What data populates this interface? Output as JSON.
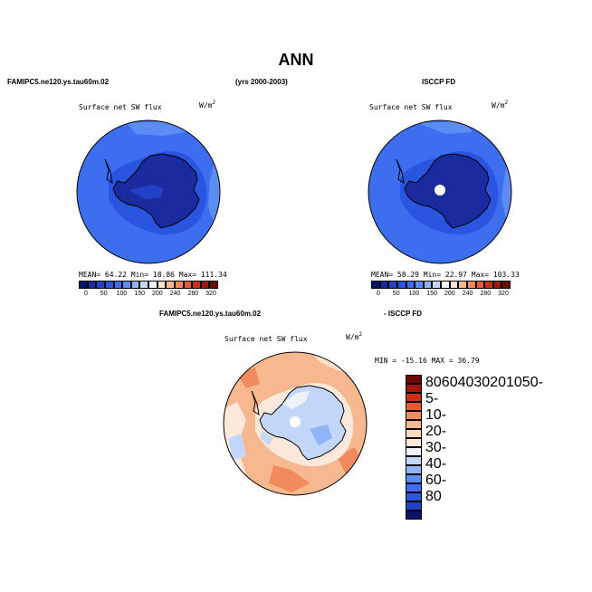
{
  "figure": {
    "title": "ANN",
    "left_header": "FAMIPC5.ne120.ys.tau60m.02",
    "center_header": "(yrs 2000-2003)",
    "right_header": "ISCCP FD",
    "diff_header_left": "FAMIPC5.ne120.ys.tau60m.02",
    "diff_header_right": "- ISCCP FD"
  },
  "panels": {
    "model": {
      "label": "Surface net SW flux",
      "unit_base": "W/m",
      "unit_exp": "2",
      "stats": "MEAN=  64.22  Min=  18.86  Max= 111.34"
    },
    "obs": {
      "label": "Surface net SW flux",
      "unit_base": "W/m",
      "unit_exp": "2",
      "stats": "MEAN=  58.29  Min=  22.97  Max= 103.33"
    },
    "diff": {
      "label": "Surface net SW flux",
      "unit_base": "W/m",
      "unit_exp": "2",
      "stats": "MIN = -15.16 MAX =  36.79"
    }
  },
  "colorbar_main": {
    "colors": [
      "#0b1467",
      "#1a2ba0",
      "#2240c8",
      "#2a55e0",
      "#3d6ef0",
      "#5b8df5",
      "#8fb4f7",
      "#c2d7fa",
      "#eef2fb",
      "#fde3cf",
      "#f8b88f",
      "#f18a5c",
      "#e65a33",
      "#cc2f17",
      "#a0180b",
      "#6c0a04"
    ],
    "tick_labels": [
      "0",
      "50",
      "100",
      "150",
      "200",
      "240",
      "280",
      "320"
    ]
  },
  "colorbar_diff": {
    "colors": [
      "#6c0a04",
      "#a0180b",
      "#cc2f17",
      "#e65a33",
      "#f18a5c",
      "#f8b88f",
      "#fcd9bf",
      "#fde9dc",
      "#eef2fb",
      "#c2d7fa",
      "#8fb4f7",
      "#5b8df5",
      "#3d6ef0",
      "#2a55e0",
      "#2240c8",
      "#0b1467"
    ],
    "tick_labels": [
      "80",
      "60",
      "40",
      "30",
      "20",
      "10",
      "5",
      "0",
      "-5",
      "-10",
      "-20",
      "-30",
      "-40",
      "-60",
      "-80"
    ]
  },
  "colors": {
    "ocean_model": "#3d6ef0",
    "antarctica_model": "#1a2ba0",
    "ocean_diff": "#f6b48c",
    "antarctica_diff": "#c2d7fa"
  }
}
